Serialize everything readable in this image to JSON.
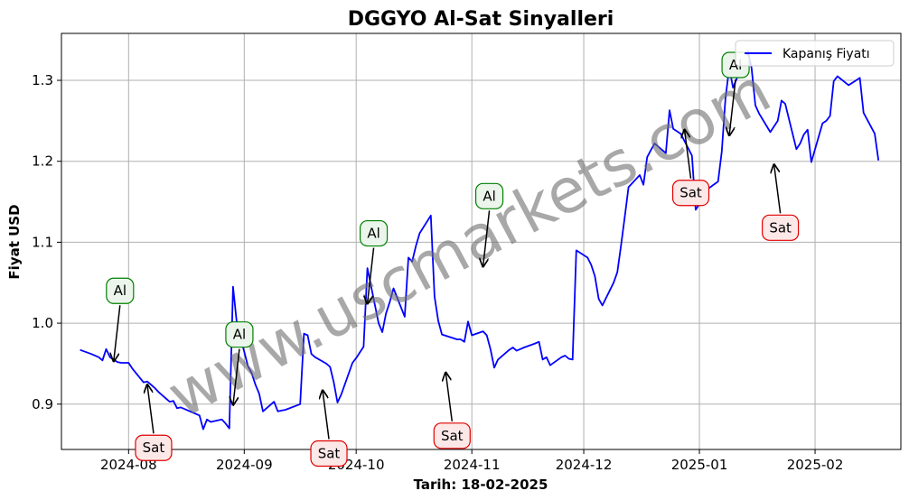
{
  "chart_data": {
    "type": "line",
    "title": "DGGYO Al-Sat Sinyalleri",
    "xlabel": "Tarih: 18-02-2025",
    "ylabel": "Fiyat USD",
    "watermark": "www.uscmarkets.com",
    "xlim": [
      "2024-07-14",
      "2025-02-24"
    ],
    "ylim": [
      0.844,
      1.358
    ],
    "grid": true,
    "legend_position": "top-right",
    "x_ticks": [
      "2024-08-01",
      "2024-09-01",
      "2024-10-01",
      "2024-11-01",
      "2024-12-01",
      "2025-01-01",
      "2025-02-01"
    ],
    "x_tick_labels": [
      "2024-08",
      "2024-09",
      "2024-10",
      "2024-11",
      "2024-12",
      "2025-01",
      "2025-02"
    ],
    "y_ticks": [
      0.9,
      1.0,
      1.1,
      1.2,
      1.3
    ],
    "y_tick_labels": [
      "0.9",
      "1.0",
      "1.1",
      "1.2",
      "1.3"
    ],
    "series": [
      {
        "name": "Kapanış Fiyatı",
        "color": "#0000ff",
        "points": [
          [
            "2024-07-19",
            0.967
          ],
          [
            "2024-07-22",
            0.962
          ],
          [
            "2024-07-24",
            0.958
          ],
          [
            "2024-07-25",
            0.954
          ],
          [
            "2024-07-26",
            0.968
          ],
          [
            "2024-07-27",
            0.958
          ],
          [
            "2024-07-29",
            0.952
          ],
          [
            "2024-07-30",
            0.951
          ],
          [
            "2024-07-31",
            0.951
          ],
          [
            "2024-08-01",
            0.951
          ],
          [
            "2024-08-02",
            0.944
          ],
          [
            "2024-08-05",
            0.927
          ],
          [
            "2024-08-06",
            0.928
          ],
          [
            "2024-08-07",
            0.924
          ],
          [
            "2024-08-08",
            0.92
          ],
          [
            "2024-08-09",
            0.915
          ],
          [
            "2024-08-12",
            0.903
          ],
          [
            "2024-08-13",
            0.904
          ],
          [
            "2024-08-14",
            0.895
          ],
          [
            "2024-08-15",
            0.896
          ],
          [
            "2024-08-16",
            0.894
          ],
          [
            "2024-08-19",
            0.888
          ],
          [
            "2024-08-20",
            0.886
          ],
          [
            "2024-08-21",
            0.869
          ],
          [
            "2024-08-22",
            0.881
          ],
          [
            "2024-08-23",
            0.878
          ],
          [
            "2024-08-26",
            0.881
          ],
          [
            "2024-08-27",
            0.876
          ],
          [
            "2024-08-28",
            0.87
          ],
          [
            "2024-08-29",
            1.045
          ],
          [
            "2024-08-30",
            1.0
          ],
          [
            "2024-09-02",
            0.947
          ],
          [
            "2024-09-03",
            0.938
          ],
          [
            "2024-09-04",
            0.924
          ],
          [
            "2024-09-05",
            0.913
          ],
          [
            "2024-09-06",
            0.891
          ],
          [
            "2024-09-09",
            0.903
          ],
          [
            "2024-09-10",
            0.891
          ],
          [
            "2024-09-11",
            0.892
          ],
          [
            "2024-09-12",
            0.893
          ],
          [
            "2024-09-16",
            0.9
          ],
          [
            "2024-09-17",
            0.987
          ],
          [
            "2024-09-18",
            0.985
          ],
          [
            "2024-09-19",
            0.962
          ],
          [
            "2024-09-20",
            0.958
          ],
          [
            "2024-09-23",
            0.95
          ],
          [
            "2024-09-24",
            0.946
          ],
          [
            "2024-09-25",
            0.927
          ],
          [
            "2024-09-26",
            0.902
          ],
          [
            "2024-09-27",
            0.912
          ],
          [
            "2024-09-30",
            0.951
          ],
          [
            "2024-10-01",
            0.957
          ],
          [
            "2024-10-02",
            0.964
          ],
          [
            "2024-10-03",
            0.971
          ],
          [
            "2024-10-04",
            1.068
          ],
          [
            "2024-10-07",
            1.0
          ],
          [
            "2024-10-08",
            0.989
          ],
          [
            "2024-10-09",
            1.012
          ],
          [
            "2024-10-10",
            1.026
          ],
          [
            "2024-10-11",
            1.043
          ],
          [
            "2024-10-14",
            1.008
          ],
          [
            "2024-10-15",
            1.081
          ],
          [
            "2024-10-16",
            1.076
          ],
          [
            "2024-10-17",
            1.095
          ],
          [
            "2024-10-18",
            1.111
          ],
          [
            "2024-10-21",
            1.133
          ],
          [
            "2024-10-22",
            1.033
          ],
          [
            "2024-10-23",
            1.003
          ],
          [
            "2024-10-24",
            0.986
          ],
          [
            "2024-10-28",
            0.98
          ],
          [
            "2024-10-29",
            0.98
          ],
          [
            "2024-10-30",
            0.977
          ],
          [
            "2024-10-31",
            1.002
          ],
          [
            "2024-11-01",
            0.985
          ],
          [
            "2024-11-04",
            0.99
          ],
          [
            "2024-11-05",
            0.985
          ],
          [
            "2024-11-06",
            0.968
          ],
          [
            "2024-11-07",
            0.945
          ],
          [
            "2024-11-08",
            0.955
          ],
          [
            "2024-11-11",
            0.967
          ],
          [
            "2024-11-12",
            0.97
          ],
          [
            "2024-11-13",
            0.966
          ],
          [
            "2024-11-14",
            0.968
          ],
          [
            "2024-11-15",
            0.97
          ],
          [
            "2024-11-18",
            0.975
          ],
          [
            "2024-11-19",
            0.977
          ],
          [
            "2024-11-20",
            0.955
          ],
          [
            "2024-11-21",
            0.958
          ],
          [
            "2024-11-22",
            0.948
          ],
          [
            "2024-11-25",
            0.958
          ],
          [
            "2024-11-26",
            0.96
          ],
          [
            "2024-11-27",
            0.956
          ],
          [
            "2024-11-28",
            0.955
          ],
          [
            "2024-11-29",
            1.09
          ],
          [
            "2024-12-02",
            1.081
          ],
          [
            "2024-12-03",
            1.072
          ],
          [
            "2024-12-04",
            1.058
          ],
          [
            "2024-12-05",
            1.03
          ],
          [
            "2024-12-06",
            1.022
          ],
          [
            "2024-12-09",
            1.05
          ],
          [
            "2024-12-10",
            1.063
          ],
          [
            "2024-12-11",
            1.096
          ],
          [
            "2024-12-12",
            1.132
          ],
          [
            "2024-12-13",
            1.168
          ],
          [
            "2024-12-16",
            1.183
          ],
          [
            "2024-12-17",
            1.171
          ],
          [
            "2024-12-18",
            1.205
          ],
          [
            "2024-12-19",
            1.214
          ],
          [
            "2024-12-20",
            1.222
          ],
          [
            "2024-12-23",
            1.21
          ],
          [
            "2024-12-24",
            1.263
          ],
          [
            "2024-12-25",
            1.24
          ],
          [
            "2024-12-26",
            1.237
          ],
          [
            "2024-12-27",
            1.234
          ],
          [
            "2024-12-30",
            1.207
          ],
          [
            "2024-12-31",
            1.14
          ],
          [
            "2025-01-02",
            1.155
          ],
          [
            "2025-01-03",
            1.165
          ],
          [
            "2025-01-06",
            1.175
          ],
          [
            "2025-01-07",
            1.212
          ],
          [
            "2025-01-08",
            1.278
          ],
          [
            "2025-01-09",
            1.316
          ],
          [
            "2025-01-10",
            1.291
          ],
          [
            "2025-01-13",
            1.324
          ],
          [
            "2025-01-14",
            1.336
          ],
          [
            "2025-01-15",
            1.315
          ],
          [
            "2025-01-16",
            1.269
          ],
          [
            "2025-01-17",
            1.259
          ],
          [
            "2025-01-20",
            1.236
          ],
          [
            "2025-01-21",
            1.243
          ],
          [
            "2025-01-22",
            1.25
          ],
          [
            "2025-01-23",
            1.275
          ],
          [
            "2025-01-24",
            1.271
          ],
          [
            "2025-01-27",
            1.215
          ],
          [
            "2025-01-28",
            1.222
          ],
          [
            "2025-01-29",
            1.233
          ],
          [
            "2025-01-30",
            1.239
          ],
          [
            "2025-01-31",
            1.199
          ],
          [
            "2025-02-03",
            1.247
          ],
          [
            "2025-02-04",
            1.25
          ],
          [
            "2025-02-05",
            1.256
          ],
          [
            "2025-02-06",
            1.299
          ],
          [
            "2025-02-07",
            1.305
          ],
          [
            "2025-02-10",
            1.294
          ],
          [
            "2025-02-11",
            1.297
          ],
          [
            "2025-02-12",
            1.3
          ],
          [
            "2025-02-13",
            1.303
          ],
          [
            "2025-02-14",
            1.26
          ],
          [
            "2025-02-17",
            1.234
          ],
          [
            "2025-02-18",
            1.201
          ]
        ]
      }
    ],
    "annotations": [
      {
        "label": "Al",
        "kind": "buy",
        "date": "2024-07-28",
        "value": 0.953
      },
      {
        "label": "Sat",
        "kind": "sell",
        "date": "2024-08-06",
        "value": 0.924
      },
      {
        "label": "Al",
        "kind": "buy",
        "date": "2024-08-29",
        "value": 0.899
      },
      {
        "label": "Sat",
        "kind": "sell",
        "date": "2024-09-22",
        "value": 0.917
      },
      {
        "label": "Al",
        "kind": "buy",
        "date": "2024-10-04",
        "value": 1.024
      },
      {
        "label": "Sat",
        "kind": "sell",
        "date": "2024-10-25",
        "value": 0.939
      },
      {
        "label": "Al",
        "kind": "buy",
        "date": "2024-11-04",
        "value": 1.07
      },
      {
        "label": "Sat",
        "kind": "sell",
        "date": "2024-12-28",
        "value": 1.239
      },
      {
        "label": "Al",
        "kind": "buy",
        "date": "2025-01-09",
        "value": 1.232
      },
      {
        "label": "Sat",
        "kind": "sell",
        "date": "2025-01-21",
        "value": 1.196
      }
    ]
  }
}
